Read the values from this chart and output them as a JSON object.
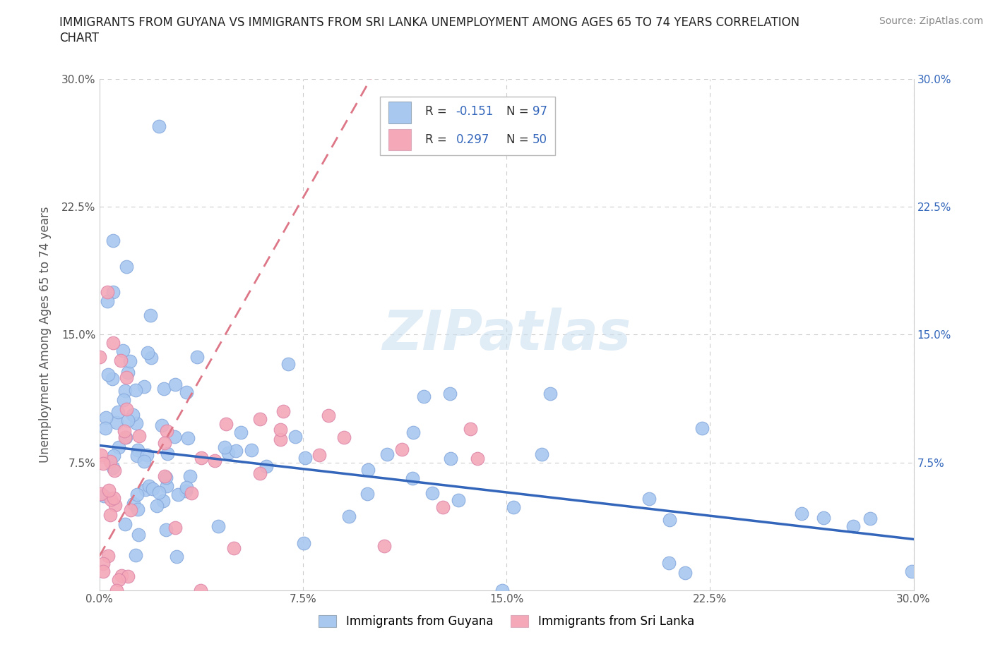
{
  "title_line1": "IMMIGRANTS FROM GUYANA VS IMMIGRANTS FROM SRI LANKA UNEMPLOYMENT AMONG AGES 65 TO 74 YEARS CORRELATION",
  "title_line2": "CHART",
  "source": "Source: ZipAtlas.com",
  "ylabel": "Unemployment Among Ages 65 to 74 years",
  "xlim": [
    0.0,
    0.3
  ],
  "ylim": [
    0.0,
    0.3
  ],
  "guyana_color": "#a8c8f0",
  "guyana_edge_color": "#a8c8f0",
  "srilanka_color": "#f4a8b8",
  "srilanka_edge_color": "#f4a8b8",
  "guyana_R": -0.151,
  "guyana_N": 97,
  "srilanka_R": 0.297,
  "srilanka_N": 50,
  "watermark_text": "ZIPatlas",
  "background_color": "#ffffff",
  "grid_color": "#cccccc",
  "guyana_line_color": "#3366bb",
  "srilanka_line_color": "#dd7788",
  "right_axis_color": "#3366bb",
  "legend_text_color": "#3366bb",
  "legend_label_color": "#333333"
}
